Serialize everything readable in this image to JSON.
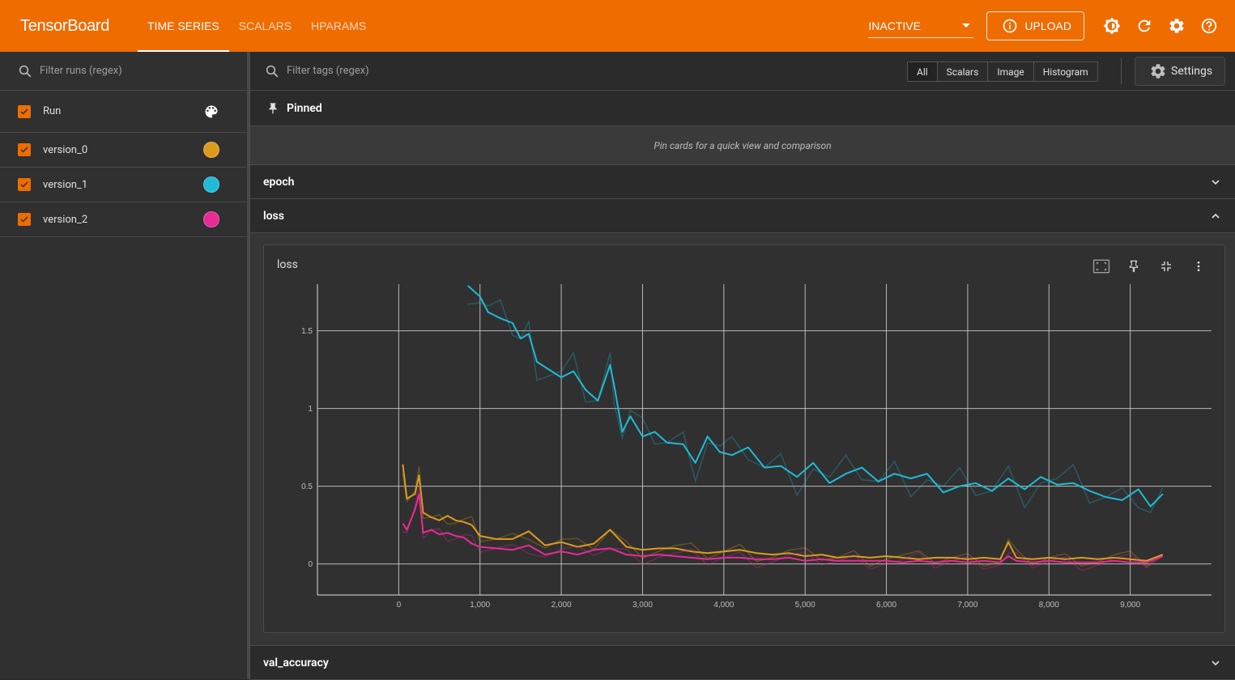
{
  "app": {
    "brand": "TensorBoard",
    "tabs": [
      {
        "label": "TIME SERIES",
        "active": true
      },
      {
        "label": "SCALARS",
        "active": false
      },
      {
        "label": "HPARAMS",
        "active": false
      }
    ],
    "status_select": "INACTIVE",
    "upload_label": "UPLOAD"
  },
  "sidebar": {
    "filter_placeholder": "Filter runs (regex)",
    "header_label": "Run",
    "runs": [
      {
        "name": "version_0",
        "color": "#dd9b1c"
      },
      {
        "name": "version_1",
        "color": "#1fbad6"
      },
      {
        "name": "version_2",
        "color": "#e92b94"
      }
    ]
  },
  "main": {
    "filter_placeholder": "Filter tags (regex)",
    "type_filters": [
      "All",
      "Scalars",
      "Image",
      "Histogram"
    ],
    "settings_label": "Settings",
    "pinned_label": "Pinned",
    "pinned_empty": "Pin cards for a quick view and comparison",
    "groups": [
      "epoch",
      "loss",
      "val_accuracy"
    ],
    "card_title": "loss"
  },
  "chart_data": {
    "type": "line",
    "title": "loss",
    "xlabel": "",
    "ylabel": "",
    "xlim": [
      -1000,
      10000
    ],
    "ylim": [
      -0.2,
      1.8
    ],
    "x_ticks": [
      "0",
      "1,000",
      "2,000",
      "3,000",
      "4,000",
      "5,000",
      "6,000",
      "7,000",
      "8,000",
      "9,000"
    ],
    "y_ticks": [
      "0",
      "0.5",
      "1",
      "1.5"
    ],
    "series": [
      {
        "name": "version_1",
        "color": "#1fbad6",
        "x": [
          850,
          1000,
          1100,
          1250,
          1400,
          1500,
          1600,
          1700,
          1850,
          2000,
          2150,
          2300,
          2450,
          2600,
          2650,
          2750,
          2850,
          3000,
          3150,
          3300,
          3500,
          3650,
          3800,
          3950,
          4100,
          4300,
          4500,
          4700,
          4900,
          5100,
          5300,
          5500,
          5700,
          5900,
          6100,
          6300,
          6500,
          6700,
          6900,
          7100,
          7300,
          7500,
          7700,
          7900,
          8100,
          8300,
          8500,
          8700,
          8900,
          9100,
          9250,
          9400
        ],
        "values": [
          1.79,
          1.72,
          1.62,
          1.58,
          1.55,
          1.45,
          1.48,
          1.3,
          1.25,
          1.2,
          1.24,
          1.12,
          1.05,
          1.28,
          1.15,
          0.85,
          0.95,
          0.82,
          0.85,
          0.78,
          0.77,
          0.65,
          0.82,
          0.72,
          0.7,
          0.75,
          0.62,
          0.63,
          0.56,
          0.65,
          0.52,
          0.58,
          0.62,
          0.53,
          0.58,
          0.55,
          0.58,
          0.46,
          0.5,
          0.52,
          0.47,
          0.55,
          0.48,
          0.56,
          0.51,
          0.52,
          0.47,
          0.43,
          0.41,
          0.48,
          0.37,
          0.45
        ]
      },
      {
        "name": "version_0",
        "color": "#dd9b1c",
        "x": [
          50,
          100,
          200,
          250,
          300,
          400,
          500,
          600,
          700,
          800,
          900,
          1000,
          1200,
          1400,
          1600,
          1800,
          2000,
          2200,
          2400,
          2600,
          2800,
          3000,
          3200,
          3400,
          3600,
          3800,
          4000,
          4200,
          4400,
          4600,
          4800,
          5000,
          5200,
          5400,
          5600,
          5800,
          6000,
          6200,
          6400,
          6600,
          6800,
          7000,
          7200,
          7400,
          7500,
          7600,
          7800,
          8000,
          8200,
          8400,
          8600,
          8800,
          9000,
          9200,
          9400
        ],
        "values": [
          0.64,
          0.42,
          0.45,
          0.57,
          0.33,
          0.3,
          0.28,
          0.31,
          0.28,
          0.27,
          0.25,
          0.18,
          0.16,
          0.16,
          0.21,
          0.12,
          0.14,
          0.11,
          0.13,
          0.22,
          0.11,
          0.09,
          0.1,
          0.1,
          0.08,
          0.07,
          0.08,
          0.09,
          0.07,
          0.06,
          0.07,
          0.05,
          0.06,
          0.04,
          0.05,
          0.04,
          0.05,
          0.04,
          0.03,
          0.04,
          0.04,
          0.03,
          0.04,
          0.03,
          0.14,
          0.04,
          0.03,
          0.04,
          0.03,
          0.04,
          0.03,
          0.04,
          0.03,
          0.02,
          0.06
        ]
      },
      {
        "name": "version_2",
        "color": "#e92b94",
        "x": [
          50,
          100,
          200,
          250,
          300,
          400,
          500,
          600,
          700,
          800,
          900,
          1000,
          1200,
          1400,
          1600,
          1800,
          2000,
          2200,
          2400,
          2600,
          2800,
          3000,
          3200,
          3400,
          3600,
          3800,
          4000,
          4200,
          4400,
          4600,
          4800,
          5000,
          5200,
          5400,
          5600,
          5800,
          6000,
          6200,
          6400,
          6600,
          6800,
          7000,
          7200,
          7400,
          7500,
          7600,
          7800,
          8000,
          8200,
          8400,
          8600,
          8800,
          9000,
          9200,
          9400
        ],
        "values": [
          0.26,
          0.22,
          0.35,
          0.45,
          0.2,
          0.22,
          0.19,
          0.2,
          0.18,
          0.17,
          0.13,
          0.11,
          0.1,
          0.09,
          0.12,
          0.06,
          0.08,
          0.06,
          0.09,
          0.1,
          0.06,
          0.05,
          0.06,
          0.05,
          0.04,
          0.03,
          0.04,
          0.04,
          0.03,
          0.03,
          0.04,
          0.02,
          0.03,
          0.02,
          0.02,
          0.02,
          0.02,
          0.01,
          0.02,
          0.01,
          0.02,
          0.01,
          0.02,
          0.01,
          0.05,
          0.02,
          0.01,
          0.02,
          0.01,
          0.01,
          0.01,
          0.02,
          0.01,
          0.01,
          0.05
        ]
      }
    ]
  }
}
